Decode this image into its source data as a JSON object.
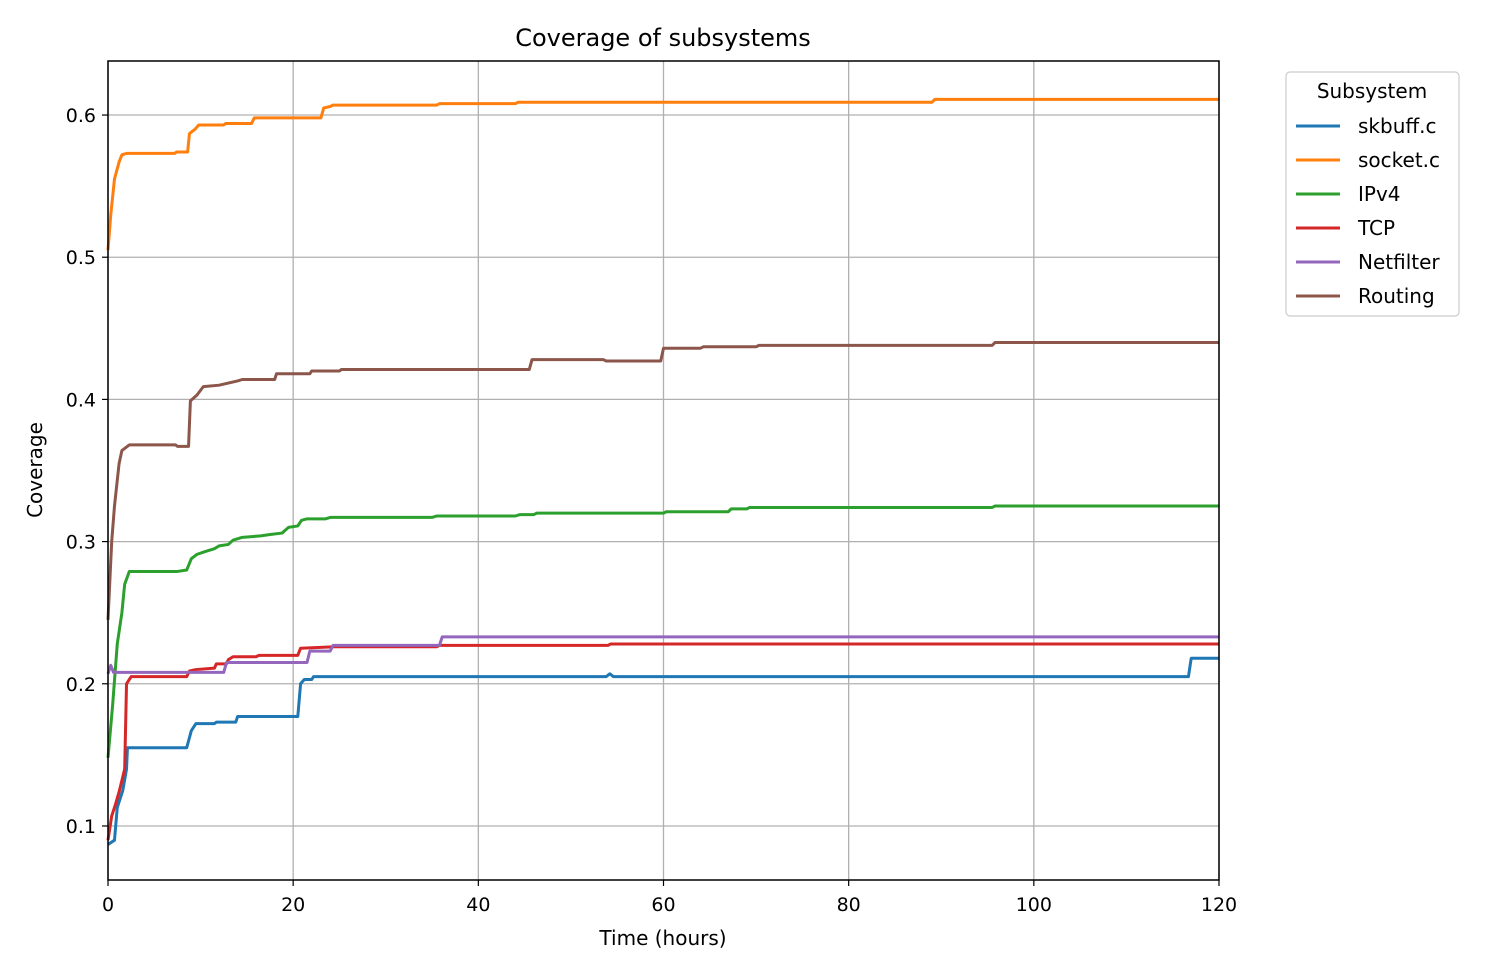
{
  "chart_data": {
    "type": "line",
    "title": "Coverage of subsystems",
    "xlabel": "Time (hours)",
    "ylabel": "Coverage",
    "xlim": [
      0,
      120
    ],
    "ylim": [
      0.062,
      0.638
    ],
    "xticks": [
      0,
      20,
      40,
      60,
      80,
      100,
      120
    ],
    "xtick_labels": [
      "0",
      "20",
      "40",
      "60",
      "80",
      "100",
      "120"
    ],
    "yticks": [
      0.1,
      0.2,
      0.3,
      0.4,
      0.5,
      0.6
    ],
    "ytick_labels": [
      "0.1",
      "0.2",
      "0.3",
      "0.4",
      "0.5",
      "0.6"
    ],
    "grid": true,
    "legend": {
      "title": "Subsystem",
      "placement": "outside upper right"
    },
    "series": [
      {
        "name": "skbuff.c",
        "color": "#1f77b4",
        "points": [
          [
            0,
            0.087
          ],
          [
            0.7,
            0.09
          ],
          [
            1.0,
            0.113
          ],
          [
            1.6,
            0.125
          ],
          [
            2.0,
            0.14
          ],
          [
            2.1,
            0.155
          ],
          [
            8.5,
            0.155
          ],
          [
            9.0,
            0.167
          ],
          [
            9.5,
            0.172
          ],
          [
            11.5,
            0.172
          ],
          [
            11.7,
            0.173
          ],
          [
            13.8,
            0.173
          ],
          [
            14.0,
            0.177
          ],
          [
            20.5,
            0.177
          ],
          [
            20.8,
            0.2
          ],
          [
            21.2,
            0.203
          ],
          [
            22.0,
            0.203
          ],
          [
            22.2,
            0.205
          ],
          [
            53.8,
            0.205
          ],
          [
            54.2,
            0.207
          ],
          [
            54.6,
            0.205
          ],
          [
            116.7,
            0.205
          ],
          [
            117.0,
            0.218
          ],
          [
            120,
            0.218
          ]
        ]
      },
      {
        "name": "socket.c",
        "color": "#ff7f0e",
        "points": [
          [
            0,
            0.505
          ],
          [
            0.3,
            0.53
          ],
          [
            0.7,
            0.555
          ],
          [
            1.2,
            0.567
          ],
          [
            1.5,
            0.572
          ],
          [
            2.0,
            0.573
          ],
          [
            7.2,
            0.573
          ],
          [
            7.4,
            0.574
          ],
          [
            8.6,
            0.574
          ],
          [
            8.8,
            0.587
          ],
          [
            9.4,
            0.59
          ],
          [
            9.8,
            0.593
          ],
          [
            12.5,
            0.593
          ],
          [
            12.7,
            0.594
          ],
          [
            15.5,
            0.594
          ],
          [
            15.8,
            0.598
          ],
          [
            23.0,
            0.598
          ],
          [
            23.3,
            0.605
          ],
          [
            24.0,
            0.606
          ],
          [
            24.3,
            0.607
          ],
          [
            35.5,
            0.607
          ],
          [
            35.8,
            0.608
          ],
          [
            44.0,
            0.608
          ],
          [
            44.3,
            0.609
          ],
          [
            89.0,
            0.609
          ],
          [
            89.3,
            0.611
          ],
          [
            120,
            0.611
          ]
        ]
      },
      {
        "name": "IPv4",
        "color": "#2ca02c",
        "points": [
          [
            0,
            0.148
          ],
          [
            0.5,
            0.185
          ],
          [
            1.0,
            0.228
          ],
          [
            1.5,
            0.25
          ],
          [
            1.8,
            0.27
          ],
          [
            2.3,
            0.279
          ],
          [
            7.5,
            0.279
          ],
          [
            8.5,
            0.28
          ],
          [
            9.0,
            0.288
          ],
          [
            9.6,
            0.291
          ],
          [
            10.5,
            0.293
          ],
          [
            11.5,
            0.295
          ],
          [
            12.0,
            0.297
          ],
          [
            13.0,
            0.298
          ],
          [
            13.5,
            0.301
          ],
          [
            14.5,
            0.303
          ],
          [
            16.5,
            0.304
          ],
          [
            17.5,
            0.305
          ],
          [
            18.8,
            0.306
          ],
          [
            19.5,
            0.31
          ],
          [
            20.5,
            0.311
          ],
          [
            20.9,
            0.315
          ],
          [
            21.5,
            0.316
          ],
          [
            23.5,
            0.316
          ],
          [
            24.0,
            0.317
          ],
          [
            35.0,
            0.317
          ],
          [
            35.5,
            0.318
          ],
          [
            44.0,
            0.318
          ],
          [
            44.5,
            0.319
          ],
          [
            46.0,
            0.319
          ],
          [
            46.3,
            0.32
          ],
          [
            60.0,
            0.32
          ],
          [
            60.3,
            0.321
          ],
          [
            67.0,
            0.321
          ],
          [
            67.3,
            0.323
          ],
          [
            69.0,
            0.323
          ],
          [
            69.3,
            0.324
          ],
          [
            95.5,
            0.324
          ],
          [
            95.8,
            0.325
          ],
          [
            120,
            0.325
          ]
        ]
      },
      {
        "name": "TCP",
        "color": "#d62728",
        "points": [
          [
            0,
            0.09
          ],
          [
            0.4,
            0.107
          ],
          [
            0.8,
            0.115
          ],
          [
            1.2,
            0.124
          ],
          [
            1.8,
            0.14
          ],
          [
            2.0,
            0.2
          ],
          [
            2.5,
            0.205
          ],
          [
            8.5,
            0.205
          ],
          [
            8.8,
            0.209
          ],
          [
            9.5,
            0.21
          ],
          [
            11.5,
            0.211
          ],
          [
            11.7,
            0.214
          ],
          [
            12.8,
            0.214
          ],
          [
            13.0,
            0.217
          ],
          [
            13.5,
            0.219
          ],
          [
            16.0,
            0.219
          ],
          [
            16.3,
            0.22
          ],
          [
            20.5,
            0.22
          ],
          [
            20.8,
            0.225
          ],
          [
            24.5,
            0.226
          ],
          [
            35.5,
            0.226
          ],
          [
            35.8,
            0.227
          ],
          [
            54.0,
            0.227
          ],
          [
            54.3,
            0.228
          ],
          [
            120,
            0.228
          ]
        ]
      },
      {
        "name": "Netfilter",
        "color": "#9467bd",
        "points": [
          [
            0,
            0.207
          ],
          [
            0.3,
            0.213
          ],
          [
            0.6,
            0.208
          ],
          [
            12.5,
            0.208
          ],
          [
            12.8,
            0.215
          ],
          [
            21.5,
            0.215
          ],
          [
            21.8,
            0.223
          ],
          [
            24.0,
            0.223
          ],
          [
            24.3,
            0.227
          ],
          [
            35.8,
            0.227
          ],
          [
            36.1,
            0.233
          ],
          [
            120,
            0.233
          ]
        ]
      },
      {
        "name": "Routing",
        "color": "#8c564b",
        "points": [
          [
            0,
            0.245
          ],
          [
            0.4,
            0.3
          ],
          [
            0.7,
            0.325
          ],
          [
            1.2,
            0.355
          ],
          [
            1.5,
            0.364
          ],
          [
            2.3,
            0.368
          ],
          [
            7.3,
            0.368
          ],
          [
            7.5,
            0.367
          ],
          [
            8.7,
            0.367
          ],
          [
            8.9,
            0.399
          ],
          [
            9.6,
            0.403
          ],
          [
            10.3,
            0.409
          ],
          [
            12.0,
            0.41
          ],
          [
            14.0,
            0.413
          ],
          [
            14.5,
            0.414
          ],
          [
            18.0,
            0.414
          ],
          [
            18.2,
            0.418
          ],
          [
            21.8,
            0.418
          ],
          [
            22.0,
            0.42
          ],
          [
            25.0,
            0.42
          ],
          [
            25.2,
            0.421
          ],
          [
            45.5,
            0.421
          ],
          [
            45.8,
            0.428
          ],
          [
            53.5,
            0.428
          ],
          [
            53.8,
            0.427
          ],
          [
            59.7,
            0.427
          ],
          [
            60.0,
            0.436
          ],
          [
            64.0,
            0.436
          ],
          [
            64.3,
            0.437
          ],
          [
            70.0,
            0.437
          ],
          [
            70.3,
            0.438
          ],
          [
            76.0,
            0.438
          ],
          [
            76.3,
            0.438
          ],
          [
            95.5,
            0.438
          ],
          [
            95.8,
            0.44
          ],
          [
            120,
            0.44
          ]
        ]
      }
    ]
  }
}
